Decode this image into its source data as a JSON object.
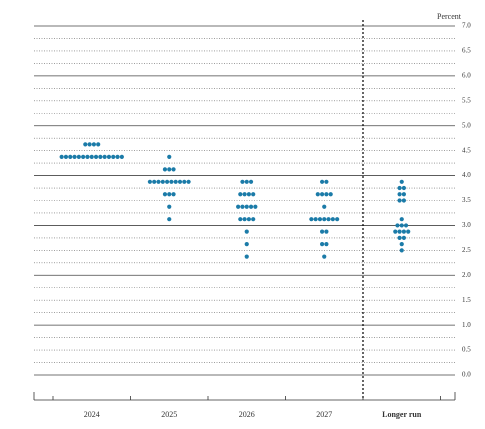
{
  "chart_data": {
    "type": "dot",
    "y_label": "Percent",
    "categories": [
      "2024",
      "2025",
      "2026",
      "2027",
      "Longer run"
    ],
    "values": [
      [
        {
          "rate": 4.625,
          "count": 4
        },
        {
          "rate": 4.375,
          "count": 15
        }
      ],
      [
        {
          "rate": 4.375,
          "count": 1
        },
        {
          "rate": 4.125,
          "count": 3
        },
        {
          "rate": 3.875,
          "count": 10
        },
        {
          "rate": 3.625,
          "count": 3
        },
        {
          "rate": 3.375,
          "count": 1
        },
        {
          "rate": 3.125,
          "count": 1
        }
      ],
      [
        {
          "rate": 3.875,
          "count": 3
        },
        {
          "rate": 3.625,
          "count": 4
        },
        {
          "rate": 3.375,
          "count": 5
        },
        {
          "rate": 3.125,
          "count": 4
        },
        {
          "rate": 2.875,
          "count": 1
        },
        {
          "rate": 2.625,
          "count": 1
        },
        {
          "rate": 2.375,
          "count": 1
        }
      ],
      [
        {
          "rate": 3.875,
          "count": 2
        },
        {
          "rate": 3.625,
          "count": 4
        },
        {
          "rate": 3.375,
          "count": 1
        },
        {
          "rate": 3.125,
          "count": 7
        },
        {
          "rate": 2.875,
          "count": 2
        },
        {
          "rate": 2.625,
          "count": 2
        },
        {
          "rate": 2.375,
          "count": 1
        }
      ],
      [
        {
          "rate": 3.875,
          "count": 1
        },
        {
          "rate": 3.75,
          "count": 2
        },
        {
          "rate": 3.625,
          "count": 2
        },
        {
          "rate": 3.5,
          "count": 2
        },
        {
          "rate": 3.125,
          "count": 1
        },
        {
          "rate": 3.0,
          "count": 3
        },
        {
          "rate": 2.875,
          "count": 4
        },
        {
          "rate": 2.75,
          "count": 2
        },
        {
          "rate": 2.625,
          "count": 1
        },
        {
          "rate": 2.5,
          "count": 1
        }
      ]
    ],
    "color": "#1b7ba8",
    "ylim": [
      0,
      7
    ],
    "yticks": [
      {
        "value": 0,
        "label": "0.0"
      },
      {
        "value": 0.5,
        "label": "0.5"
      },
      {
        "value": 1,
        "label": "1.0"
      },
      {
        "value": 1.5,
        "label": "1.5"
      },
      {
        "value": 2,
        "label": "2.0"
      },
      {
        "value": 2.5,
        "label": "2.5"
      },
      {
        "value": 3,
        "label": "3.0"
      },
      {
        "value": 3.5,
        "label": "3.5"
      },
      {
        "value": 4,
        "label": "4.0"
      },
      {
        "value": 4.5,
        "label": "4.5"
      },
      {
        "value": 5,
        "label": "5.0"
      },
      {
        "value": 5.5,
        "label": "5.5"
      },
      {
        "value": 6,
        "label": "6.0"
      },
      {
        "value": 6.5,
        "label": "6.5"
      },
      {
        "value": 7,
        "label": "7.0"
      }
    ],
    "grid": true
  }
}
